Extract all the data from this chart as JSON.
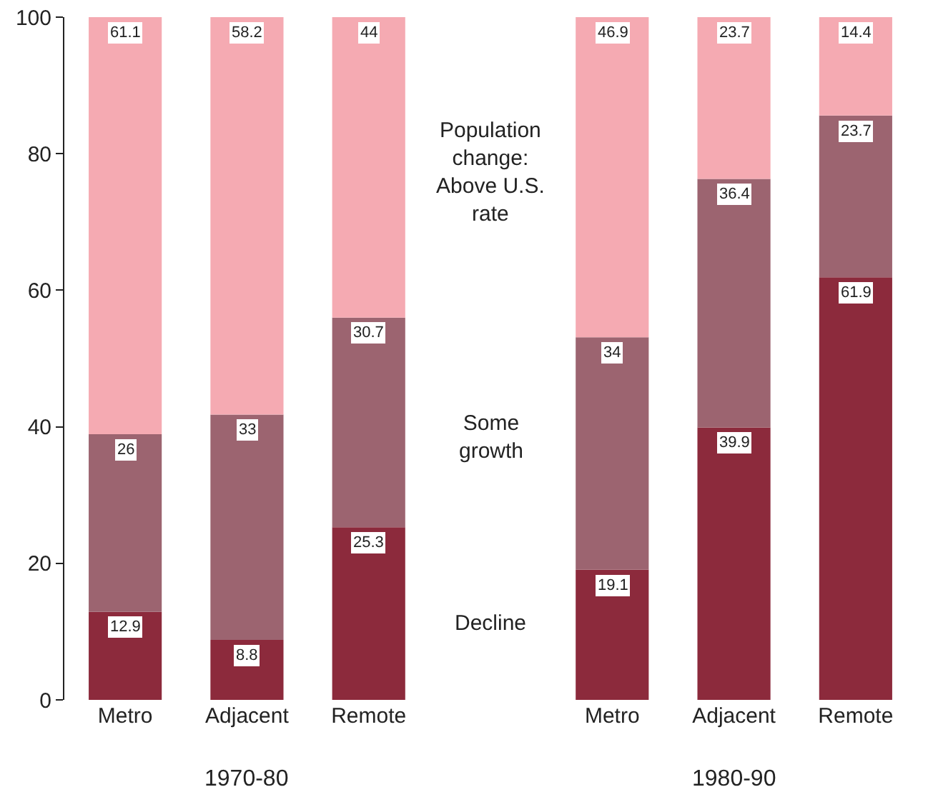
{
  "chart_data": {
    "type": "bar",
    "stacked": true,
    "categories": [
      "Metro",
      "Adjacent",
      "Remote",
      null,
      "Metro",
      "Adjacent",
      "Remote"
    ],
    "series": [
      {
        "name": "Decline",
        "color": "#8c2a3c",
        "values": [
          12.9,
          8.8,
          25.3,
          null,
          19.1,
          39.9,
          61.9
        ]
      },
      {
        "name": "Some growth",
        "color": "#9c6470",
        "values": [
          26,
          33,
          30.7,
          null,
          34,
          36.4,
          23.7
        ]
      },
      {
        "name": "Population change: Above U.S. rate",
        "color": "#f5aab2",
        "values": [
          61.1,
          58.2,
          44,
          null,
          46.9,
          23.7,
          14.4
        ]
      }
    ],
    "data_labels": true,
    "ylim": [
      0,
      100
    ],
    "yticks": [
      0,
      20,
      40,
      60,
      80,
      100
    ],
    "grid": false,
    "legend": false,
    "annotations": [
      "1970-80",
      "1980-90"
    ]
  }
}
